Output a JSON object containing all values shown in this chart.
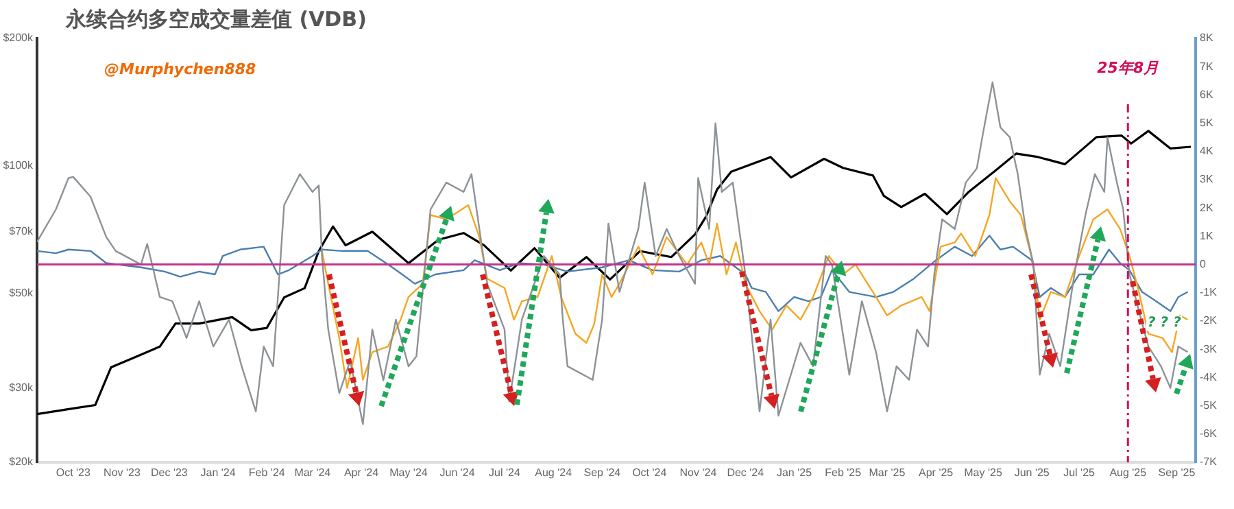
{
  "chart_data": {
    "type": "line",
    "title": "永续合约多空成交量差值 (VDB)",
    "annotations": [
      "@Murphychen888",
      "? ? ?"
    ],
    "xlim": [
      "2023-09-08",
      "2025-09-13"
    ],
    "xticks": [
      {
        "value": "2023-10-01",
        "label": "Oct '23"
      },
      {
        "value": "2023-11-01",
        "label": "Nov '23"
      },
      {
        "value": "2023-12-01",
        "label": "Dec '23"
      },
      {
        "value": "2024-01-01",
        "label": "Jan '24"
      },
      {
        "value": "2024-02-01",
        "label": "Feb '24"
      },
      {
        "value": "2024-03-01",
        "label": "Mar '24"
      },
      {
        "value": "2024-04-01",
        "label": "Apr '24"
      },
      {
        "value": "2024-05-01",
        "label": "May '24"
      },
      {
        "value": "2024-06-01",
        "label": "Jun '24"
      },
      {
        "value": "2024-07-01",
        "label": "Jul '24"
      },
      {
        "value": "2024-08-01",
        "label": "Aug '24"
      },
      {
        "value": "2024-09-01",
        "label": "Sep '24"
      },
      {
        "value": "2024-10-01",
        "label": "Oct '24"
      },
      {
        "value": "2024-11-01",
        "label": "Nov '24"
      },
      {
        "value": "2024-12-01",
        "label": "Dec '24"
      },
      {
        "value": "2025-01-01",
        "label": "Jan '25"
      },
      {
        "value": "2025-02-01",
        "label": "Feb '25"
      },
      {
        "value": "2025-03-01",
        "label": "Mar '25"
      },
      {
        "value": "2025-04-01",
        "label": "Apr '25"
      },
      {
        "value": "2025-05-01",
        "label": "May '25"
      },
      {
        "value": "2025-06-01",
        "label": "Jun '25"
      },
      {
        "value": "2025-07-01",
        "label": "Jul '25"
      },
      {
        "value": "2025-08-01",
        "label": "Aug '25"
      },
      {
        "value": "2025-09-01",
        "label": "Sep '25"
      }
    ],
    "log": "y",
    "ylim": [
      20000,
      200000
    ],
    "yticks": [
      {
        "value": 20000,
        "label": "$20k"
      },
      {
        "value": 30000,
        "label": "$30k"
      },
      {
        "value": 50000,
        "label": "$50k"
      },
      {
        "value": 70000,
        "label": "$70k"
      },
      {
        "value": 100000,
        "label": "$100k"
      },
      {
        "value": 200000,
        "label": "$200k"
      }
    ],
    "y2lim": [
      -7000,
      8000
    ],
    "y2ticks": [
      {
        "value": -7000,
        "label": "-7K"
      },
      {
        "value": -6000,
        "label": "-6K"
      },
      {
        "value": -5000,
        "label": "-5K"
      },
      {
        "value": -4000,
        "label": "-4K"
      },
      {
        "value": -3000,
        "label": "-3K"
      },
      {
        "value": -2000,
        "label": "-2K"
      },
      {
        "value": -1000,
        "label": "-1K"
      },
      0,
      {
        "value": 1000,
        "label": "1K"
      },
      {
        "value": 2000,
        "label": "2K"
      },
      {
        "value": 3000,
        "label": "3K"
      },
      {
        "value": 4000,
        "label": "4K"
      },
      {
        "value": 5000,
        "label": "5K"
      },
      {
        "value": 6000,
        "label": "6K"
      },
      {
        "value": 7000,
        "label": "7K"
      },
      {
        "value": 8000,
        "label": "8K"
      }
    ],
    "marker": "none",
    "ref_lines": [
      {
        "axis": "y2",
        "value": 0,
        "color": "#c2338c",
        "line_style": "solid"
      },
      {
        "axis": "x",
        "value": "2025-08-01",
        "label": "25年8月",
        "color": "#d0105a",
        "line_style": "dashed"
      }
    ],
    "series": [
      {
        "color": "#8c9296",
        "axis": "y2",
        "x": [
          "2023-09-08",
          "2023-09-20",
          "2023-09-28",
          "2023-10-01",
          "2023-10-12",
          "2023-10-22",
          "2023-10-28",
          "2023-11-13",
          "2023-11-17",
          "2023-11-25",
          "2023-12-03",
          "2023-12-12",
          "2023-12-20",
          "2023-12-29",
          "2024-01-08",
          "2024-01-16",
          "2024-01-25",
          "2024-01-30",
          "2024-02-05",
          "2024-02-12",
          "2024-02-22",
          "2024-03-01",
          "2024-03-05",
          "2024-03-07",
          "2024-03-11",
          "2024-03-18",
          "2024-03-25",
          "2024-04-02",
          "2024-04-08",
          "2024-04-15",
          "2024-04-23",
          "2024-05-01",
          "2024-05-06",
          "2024-05-15",
          "2024-05-25",
          "2024-06-05",
          "2024-06-10",
          "2024-06-15",
          "2024-06-20",
          "2024-07-01",
          "2024-07-04",
          "2024-07-12",
          "2024-07-26",
          "2024-08-05",
          "2024-08-07",
          "2024-08-10",
          "2024-08-26",
          "2024-09-01",
          "2024-09-05",
          "2024-09-12",
          "2024-09-24",
          "2024-09-28",
          "2024-10-05",
          "2024-10-12",
          "2024-10-20",
          "2024-10-30",
          "2024-11-01",
          "2024-11-08",
          "2024-11-12",
          "2024-11-16",
          "2024-11-23",
          "2024-12-01",
          "2024-12-10",
          "2024-12-17",
          "2024-12-22",
          "2025-01-05",
          "2025-01-13",
          "2025-01-21",
          "2025-01-25",
          "2025-02-05",
          "2025-02-13",
          "2025-02-22",
          "2025-03-01",
          "2025-03-07",
          "2025-03-15",
          "2025-03-20",
          "2025-03-27",
          "2025-03-31",
          "2025-04-05",
          "2025-04-13",
          "2025-04-20",
          "2025-04-27",
          "2025-05-01",
          "2025-05-07",
          "2025-05-12",
          "2025-05-18",
          "2025-05-23",
          "2025-05-28",
          "2025-06-02",
          "2025-06-06",
          "2025-06-12",
          "2025-06-19",
          "2025-06-28",
          "2025-07-05",
          "2025-07-11",
          "2025-07-17",
          "2025-07-19",
          "2025-07-25",
          "2025-07-29",
          "2025-08-02",
          "2025-08-08",
          "2025-08-14",
          "2025-08-22",
          "2025-08-28",
          "2025-09-02",
          "2025-09-08"
        ],
        "values": [
          800,
          1950,
          3060,
          3100,
          2400,
          970,
          480,
          0,
          730,
          -1150,
          -1300,
          -2600,
          -1300,
          -2900,
          -1950,
          -3600,
          -5200,
          -2900,
          -3600,
          2100,
          3200,
          2570,
          2800,
          300,
          -2300,
          -4550,
          -3400,
          -5650,
          -2300,
          -4100,
          -1950,
          -3600,
          -3250,
          1950,
          2900,
          2570,
          3200,
          1260,
          -680,
          -2300,
          -4850,
          -1950,
          300,
          -350,
          -1950,
          -3600,
          -4080,
          -1950,
          1450,
          -970,
          1260,
          2900,
          300,
          1260,
          300,
          -680,
          3060,
          1260,
          5000,
          2570,
          2900,
          -350,
          -5200,
          -1950,
          -5350,
          -2770,
          -3600,
          300,
          0,
          -3900,
          -1300,
          -3100,
          -5200,
          -3600,
          -4080,
          -2300,
          -2900,
          -350,
          1600,
          1260,
          2900,
          3400,
          4660,
          6450,
          4850,
          4500,
          3200,
          1260,
          0,
          -3900,
          -2450,
          -3600,
          -350,
          1750,
          3200,
          2570,
          4500,
          2900,
          1950,
          -350,
          -1650,
          -2900,
          -3600,
          -4370,
          -2900,
          -3100
        ]
      },
      {
        "color": "#f5a623",
        "axis": "y2",
        "x": [
          "2024-03-07",
          "2024-03-11",
          "2024-03-18",
          "2024-03-23",
          "2024-03-30",
          "2024-04-02",
          "2024-04-08",
          "2024-04-18",
          "2024-04-26",
          "2024-05-01",
          "2024-05-10",
          "2024-05-15",
          "2024-05-25",
          "2024-06-08",
          "2024-06-15",
          "2024-06-20",
          "2024-07-01",
          "2024-07-07",
          "2024-07-12",
          "2024-07-22",
          "2024-07-31",
          "2024-08-06",
          "2024-08-15",
          "2024-08-22",
          "2024-08-27",
          "2024-09-01",
          "2024-09-07",
          "2024-09-12",
          "2024-09-24",
          "2024-10-03",
          "2024-10-12",
          "2024-10-25",
          "2024-11-03",
          "2024-11-08",
          "2024-11-13",
          "2024-11-19",
          "2024-11-25",
          "2024-12-01",
          "2024-12-10",
          "2024-12-18",
          "2024-12-27",
          "2025-01-05",
          "2025-01-13",
          "2025-01-23",
          "2025-02-01",
          "2025-02-09",
          "2025-02-22",
          "2025-03-01",
          "2025-03-10",
          "2025-03-23",
          "2025-03-28",
          "2025-04-04",
          "2025-04-13",
          "2025-04-17",
          "2025-04-26",
          "2025-05-05",
          "2025-05-09",
          "2025-05-18",
          "2025-05-25",
          "2025-06-02",
          "2025-06-06",
          "2025-06-13",
          "2025-06-22",
          "2025-07-01",
          "2025-07-10",
          "2025-07-19",
          "2025-07-27",
          "2025-08-02",
          "2025-08-08",
          "2025-08-14",
          "2025-08-23",
          "2025-08-29",
          "2025-09-03",
          "2025-09-08"
        ],
        "values": [
          480,
          -680,
          -2600,
          -4370,
          -2600,
          -4080,
          -3100,
          -2900,
          -1950,
          -1150,
          -680,
          1750,
          1600,
          2100,
          970,
          -500,
          -830,
          -1950,
          -1300,
          -1150,
          300,
          -1150,
          -2450,
          -2770,
          -2100,
          -350,
          -1150,
          -680,
          630,
          -350,
          970,
          0,
          780,
          0,
          1450,
          -350,
          780,
          -680,
          -1650,
          -2300,
          -1450,
          -1950,
          -1150,
          300,
          -350,
          0,
          -1150,
          -1800,
          -1450,
          -1150,
          -1650,
          630,
          780,
          1100,
          300,
          1750,
          3060,
          2230,
          1750,
          0,
          -1950,
          -970,
          -1150,
          300,
          1600,
          1950,
          1260,
          300,
          -970,
          -2450,
          -2600,
          -3100,
          -1800,
          -1950
        ]
      },
      {
        "color": "#4a7fb0",
        "axis": "y2",
        "x": [
          "2023-09-08",
          "2023-09-20",
          "2023-09-28",
          "2023-10-12",
          "2023-10-22",
          "2023-11-13",
          "2023-11-28",
          "2023-12-08",
          "2023-12-20",
          "2023-12-30",
          "2024-01-04",
          "2024-01-15",
          "2024-01-30",
          "2024-02-08",
          "2024-02-15",
          "2024-03-01",
          "2024-03-07",
          "2024-03-20",
          "2024-04-05",
          "2024-04-18",
          "2024-04-27",
          "2024-05-05",
          "2024-05-18",
          "2024-06-05",
          "2024-06-12",
          "2024-06-28",
          "2024-07-10",
          "2024-07-26",
          "2024-08-10",
          "2024-09-01",
          "2024-09-18",
          "2024-10-03",
          "2024-10-20",
          "2024-11-03",
          "2024-11-15",
          "2024-12-01",
          "2024-12-05",
          "2024-12-14",
          "2024-12-22",
          "2025-01-01",
          "2025-01-10",
          "2025-01-18",
          "2025-01-25",
          "2025-02-05",
          "2025-02-22",
          "2025-03-05",
          "2025-03-18",
          "2025-04-01",
          "2025-04-13",
          "2025-04-24",
          "2025-05-05",
          "2025-05-12",
          "2025-05-20",
          "2025-06-01",
          "2025-06-06",
          "2025-06-13",
          "2025-06-22",
          "2025-07-01",
          "2025-07-10",
          "2025-07-20",
          "2025-07-27",
          "2025-08-02",
          "2025-08-10",
          "2025-08-19",
          "2025-08-28",
          "2025-09-02",
          "2025-09-08"
        ],
        "values": [
          480,
          400,
          530,
          480,
          50,
          -100,
          -250,
          -430,
          -250,
          -350,
          300,
          530,
          630,
          -350,
          -200,
          300,
          530,
          480,
          480,
          0,
          -350,
          -680,
          -350,
          -200,
          150,
          -200,
          50,
          0,
          -250,
          -100,
          150,
          -200,
          -250,
          150,
          300,
          -350,
          -830,
          -970,
          -1650,
          -1150,
          -1300,
          -1150,
          -200,
          -970,
          -1150,
          -970,
          -500,
          150,
          630,
          300,
          1020,
          530,
          630,
          150,
          -1150,
          -830,
          -1150,
          -350,
          -350,
          530,
          50,
          -200,
          -970,
          -1300,
          -1650,
          -1150,
          -970
        ]
      },
      {
        "color": "#000000",
        "x": [
          "2023-09-08",
          "2023-10-01",
          "2023-10-15",
          "2023-10-25",
          "2023-11-10",
          "2023-11-25",
          "2023-12-05",
          "2023-12-20",
          "2024-01-10",
          "2024-01-22",
          "2024-02-01",
          "2024-02-12",
          "2024-02-25",
          "2024-03-05",
          "2024-03-14",
          "2024-03-22",
          "2024-04-08",
          "2024-04-20",
          "2024-05-01",
          "2024-05-20",
          "2024-06-05",
          "2024-06-18",
          "2024-07-05",
          "2024-07-20",
          "2024-08-05",
          "2024-08-22",
          "2024-09-06",
          "2024-09-25",
          "2024-10-15",
          "2024-10-30",
          "2024-11-06",
          "2024-11-13",
          "2024-11-22",
          "2024-12-05",
          "2024-12-17",
          "2024-12-30",
          "2025-01-20",
          "2025-02-01",
          "2025-02-20",
          "2025-02-27",
          "2025-03-10",
          "2025-03-25",
          "2025-04-08",
          "2025-04-22",
          "2025-05-08",
          "2025-05-22",
          "2025-06-05",
          "2025-06-22",
          "2025-07-12",
          "2025-07-28",
          "2025-08-03",
          "2025-08-14",
          "2025-08-28",
          "2025-09-10"
        ],
        "values": [
          26000,
          26800,
          27300,
          33500,
          35500,
          37500,
          42500,
          42500,
          44000,
          41000,
          41500,
          49000,
          51500,
          63000,
          72000,
          65000,
          70000,
          64000,
          59000,
          67000,
          69500,
          65000,
          56700,
          64000,
          54500,
          61000,
          54000,
          63000,
          61000,
          69000,
          76000,
          88000,
          97000,
          101000,
          105000,
          94000,
          104000,
          99000,
          95000,
          85000,
          80000,
          86000,
          77000,
          87000,
          97000,
          107000,
          105000,
          101000,
          117000,
          118000,
          113000,
          121000,
          110000,
          111000
        ]
      }
    ]
  }
}
